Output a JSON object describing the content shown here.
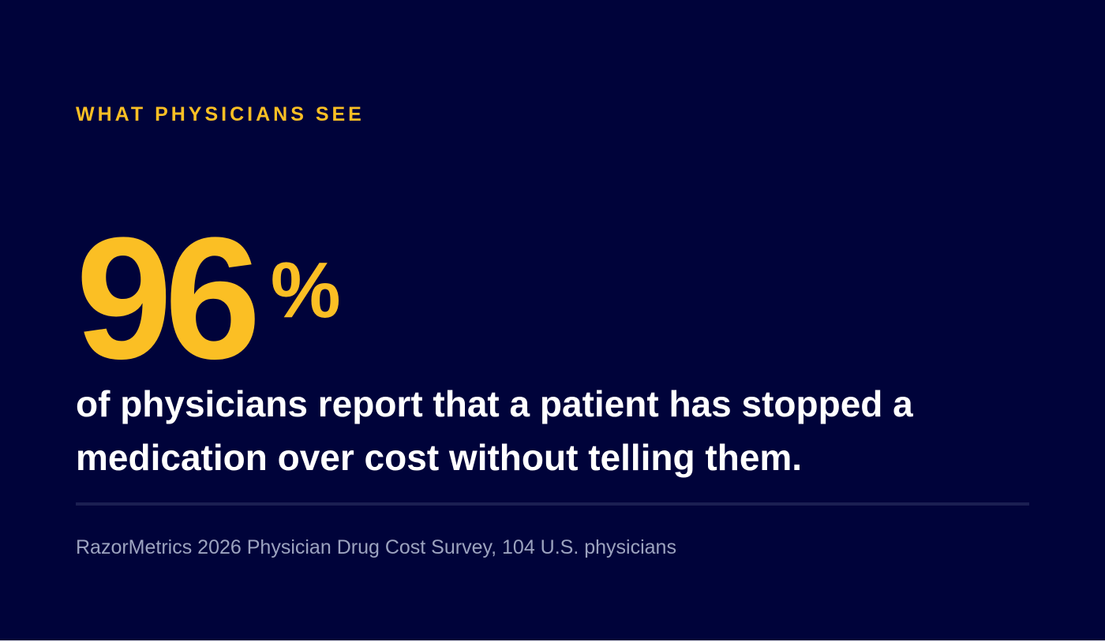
{
  "eyebrow": "WHAT PHYSICIANS SEE",
  "stat": {
    "value": "96",
    "unit": "%"
  },
  "headline": "of physicians report that a patient has stopped a medication over cost without telling them.",
  "source": "RazorMetrics 2026 Physician Drug Cost Survey, 104 U.S. physicians",
  "colors": {
    "background": "#00033a",
    "accent": "#fbbf24",
    "text": "#ffffff",
    "muted": "#9ca3bf",
    "divider": "#1b1f52"
  }
}
